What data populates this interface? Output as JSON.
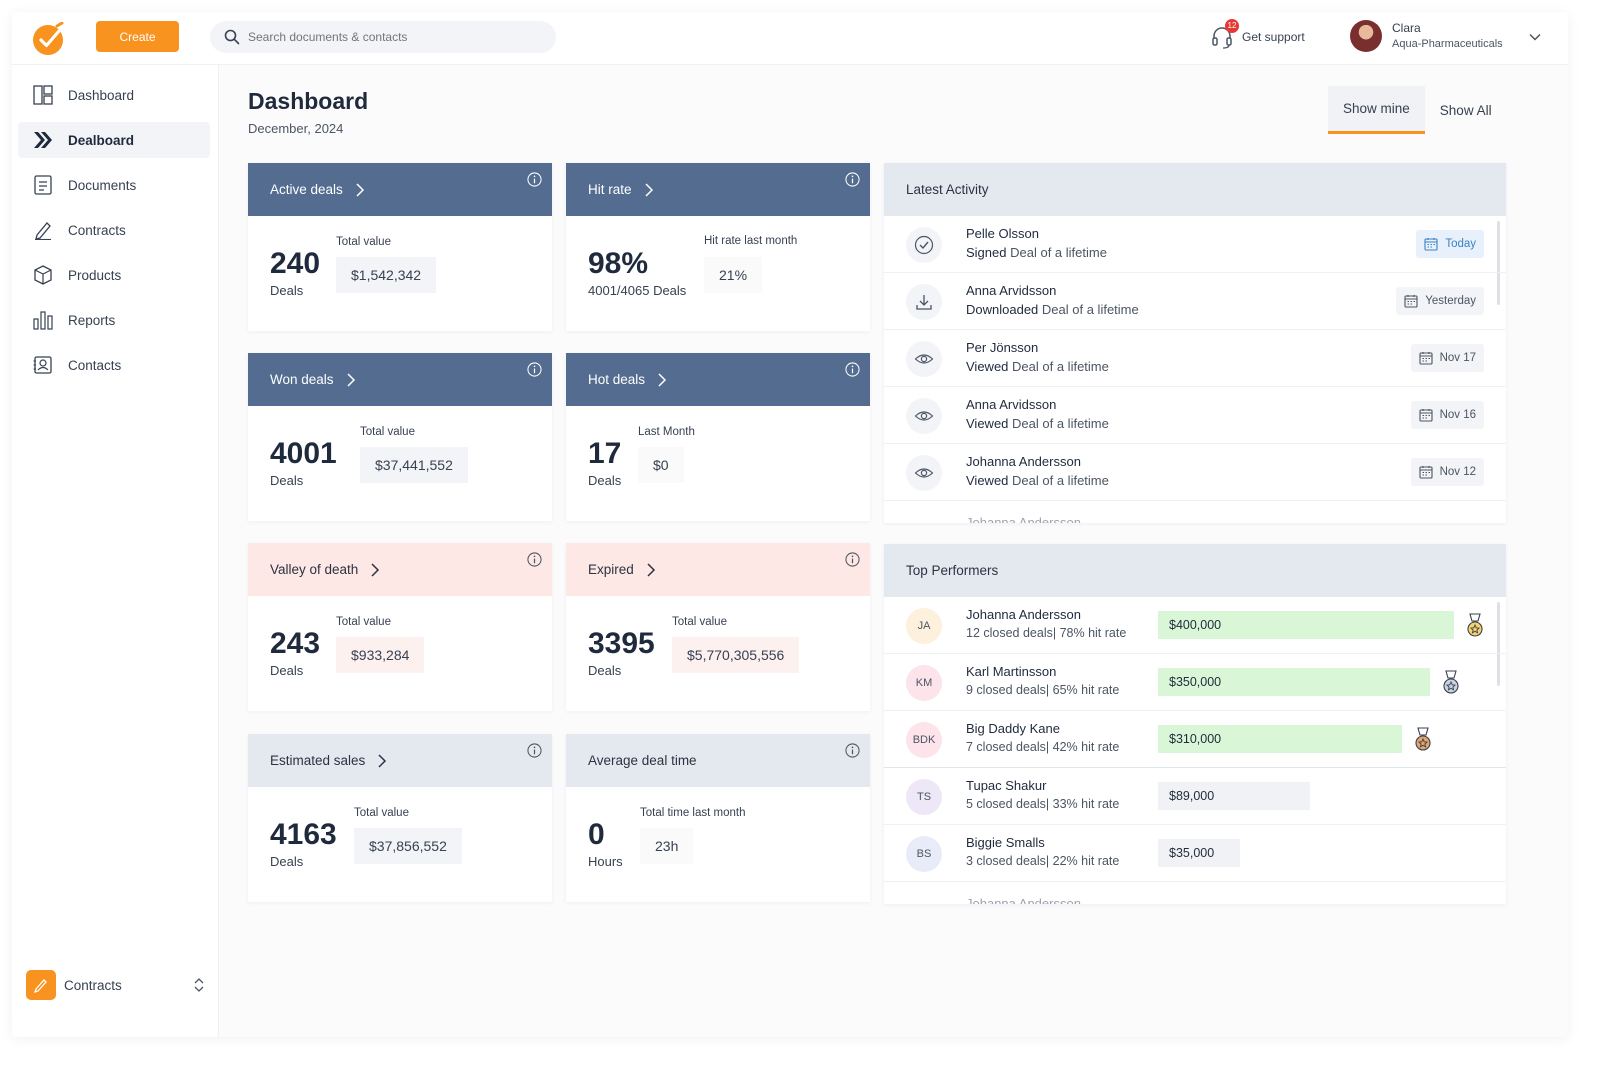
{
  "header": {
    "create_label": "Create",
    "search_placeholder": "Search documents & contacts",
    "support_label": "Get support",
    "support_badge": "12",
    "user_name": "Clara",
    "user_company": "Aqua-Pharmaceuticals"
  },
  "sidebar": {
    "items": [
      {
        "label": "Dashboard",
        "icon": "dashboard-icon"
      },
      {
        "label": "Dealboard",
        "icon": "dealboard-icon"
      },
      {
        "label": "Documents",
        "icon": "documents-icon"
      },
      {
        "label": "Contracts",
        "icon": "contracts-icon"
      },
      {
        "label": "Products",
        "icon": "products-icon"
      },
      {
        "label": "Reports",
        "icon": "reports-icon"
      },
      {
        "label": "Contacts",
        "icon": "contacts-icon"
      }
    ],
    "footer_label": "Contracts"
  },
  "main": {
    "title": "Dashboard",
    "date": "December, 2024",
    "toggle": {
      "mine": "Show mine",
      "all": "Show All"
    }
  },
  "cards": {
    "active": {
      "title": "Active deals",
      "big": "240",
      "sub": "Deals",
      "meta_label": "Total value",
      "meta_value": "$1,542,342"
    },
    "hit": {
      "title": "Hit rate",
      "big": "98%",
      "sub": "4001/4065 Deals",
      "meta_label": "Hit rate last month",
      "meta_value": "21%"
    },
    "won": {
      "title": "Won deals",
      "big": "4001",
      "sub": "Deals",
      "meta_label": "Total value",
      "meta_value": "$37,441,552"
    },
    "hot": {
      "title": "Hot deals",
      "big": "17",
      "sub": "Deals",
      "meta_label": "Last Month",
      "meta_value": "$0"
    },
    "valley": {
      "title": "Valley of death",
      "big": "243",
      "sub": "Deals",
      "meta_label": "Total value",
      "meta_value": "$933,284"
    },
    "expired": {
      "title": "Expired",
      "big": "3395",
      "sub": "Deals",
      "meta_label": "Total value",
      "meta_value": "$5,770,305,556"
    },
    "estimated": {
      "title": "Estimated sales",
      "big": "4163",
      "sub": "Deals",
      "meta_label": "Total value",
      "meta_value": "$37,856,552"
    },
    "avgtime": {
      "title": "Average deal time",
      "big": "0",
      "sub": "Hours",
      "meta_label": "Total time last month",
      "meta_value": "23h"
    }
  },
  "activity": {
    "title": "Latest Activity",
    "rows": [
      {
        "name": "Pelle Olsson",
        "action": "Signed",
        "doc": "Deal of a lifetime",
        "date": "Today",
        "icon": "check-circle-icon"
      },
      {
        "name": "Anna Arvidsson",
        "action": "Downloaded",
        "doc": "Deal of a lifetime",
        "date": "Yesterday",
        "icon": "download-icon"
      },
      {
        "name": "Per Jönsson",
        "action": "Viewed",
        "doc": "Deal of a lifetime",
        "date": "Nov 17",
        "icon": "eye-icon"
      },
      {
        "name": "Anna Arvidsson",
        "action": "Viewed",
        "doc": "Deal of a lifetime",
        "date": "Nov 16",
        "icon": "eye-icon"
      },
      {
        "name": "Johanna Andersson",
        "action": "Viewed",
        "doc": "Deal of a lifetime",
        "date": "Nov 12",
        "icon": "eye-icon"
      },
      {
        "name": "Johanna Andersson"
      }
    ]
  },
  "performers": {
    "title": "Top Performers",
    "rows": [
      {
        "initials": "JA",
        "name": "Johanna Andersson",
        "stats": "12 closed deals| 78% hit rate",
        "value": "$400,000",
        "avatar_color": "#fdf0dc",
        "medal": "gold"
      },
      {
        "initials": "KM",
        "name": "Karl Martinsson",
        "stats": "9 closed deals| 65% hit rate",
        "value": "$350,000",
        "avatar_color": "#fde3ea",
        "medal": "silver"
      },
      {
        "initials": "BDK",
        "name": "Big Daddy Kane",
        "stats": "7 closed deals| 42% hit rate",
        "value": "$310,000",
        "avatar_color": "#fde3ea",
        "medal": "bronze"
      },
      {
        "initials": "TS",
        "name": "Tupac Shakur",
        "stats": "5 closed deals| 33% hit rate",
        "value": "$89,000",
        "avatar_color": "#ede7f8"
      },
      {
        "initials": "BS",
        "name": "Biggie Smalls",
        "stats": "3 closed deals| 22% hit rate",
        "value": "$35,000",
        "avatar_color": "#e8ebf8"
      },
      {
        "name": "Johanna Andersson"
      }
    ]
  },
  "colors": {
    "brand_orange": "#f7931e",
    "card_blue": "#536c8f",
    "card_pink": "#fde8e6",
    "card_gray": "#e4e9f0",
    "bar_green": "#d9f6d7"
  }
}
